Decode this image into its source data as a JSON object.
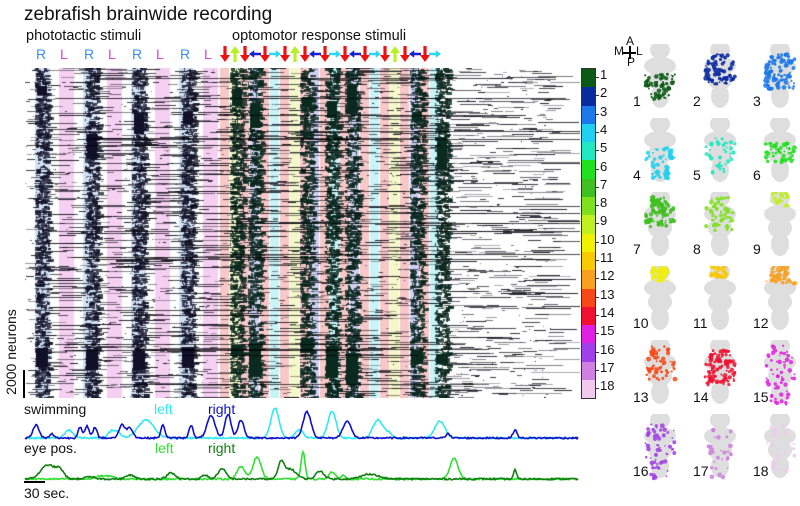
{
  "title": "zebrafish brainwide recording",
  "phototactic": {
    "heading": "phototactic stimuli",
    "labels": [
      "R",
      "L",
      "R",
      "L",
      "R",
      "L",
      "R",
      "L"
    ],
    "colors": {
      "R": "#3a8ee6",
      "L": "#e040d0"
    }
  },
  "optomotor": {
    "heading": "optomotor response stimuli",
    "arrows": [
      "down",
      "up",
      "down",
      "left",
      "down",
      "right",
      "down",
      "up",
      "down",
      "left",
      "down",
      "right",
      "down",
      "left",
      "down",
      "right",
      "down",
      "up",
      "down",
      "left",
      "down",
      "right"
    ],
    "arrow_colors": {
      "down": "#ee1111",
      "up": "#b8f020",
      "left": "#1420d0",
      "right": "#28d8f0"
    },
    "band_colors": {
      "down": "#f8c8c8",
      "up": "#f4f8c8",
      "left": "#d0d0f4",
      "right": "#c8f4f8"
    }
  },
  "phototactic_band_colors": {
    "R": "#cfe2f6",
    "L": "#f6d0f2"
  },
  "colorbar": {
    "labels": [
      "1",
      "2",
      "3",
      "4",
      "5",
      "6",
      "7",
      "8",
      "9",
      "10",
      "11",
      "12",
      "13",
      "14",
      "15",
      "16",
      "17",
      "18"
    ],
    "colors": [
      "#0b5a14",
      "#0a2aa0",
      "#1a78e8",
      "#20d0f0",
      "#20e8c0",
      "#20e020",
      "#40c020",
      "#80e020",
      "#c0f020",
      "#f0f000",
      "#f8c800",
      "#f8a020",
      "#f84818",
      "#f01030",
      "#e020e0",
      "#a040e8",
      "#d080e0",
      "#f0c8f0"
    ]
  },
  "scale": {
    "neurons": "2000 neurons",
    "time": "30 sec."
  },
  "traces": {
    "swimming": {
      "label": "swimming",
      "left": "left",
      "right": "right",
      "left_color": "#30e8f0",
      "right_color": "#1010c8"
    },
    "eye": {
      "label": "eye pos.",
      "left": "left",
      "right": "right",
      "left_color": "#30e030",
      "right_color": "#108010"
    }
  },
  "brain_maps": {
    "orientation": {
      "anterior": "A",
      "posterior": "P",
      "medial": "M",
      "lateral": "L"
    },
    "panels": [
      "1",
      "2",
      "3",
      "4",
      "5",
      "6",
      "7",
      "8",
      "9",
      "10",
      "11",
      "12",
      "13",
      "14",
      "15",
      "16",
      "17",
      "18"
    ]
  }
}
